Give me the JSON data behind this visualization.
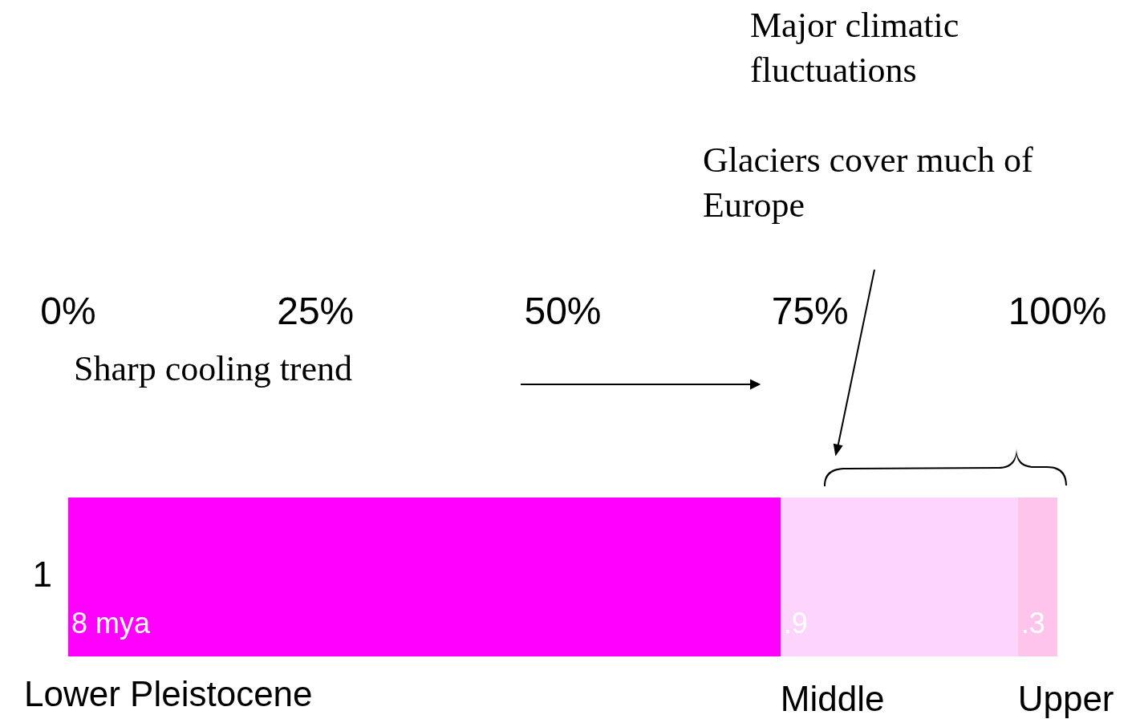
{
  "chart_data": {
    "type": "bar",
    "orientation": "horizontal",
    "stacked": true,
    "categories": [
      "1"
    ],
    "series": [
      {
        "name": "Lower Pleistocene",
        "color": "#ff00ff",
        "values": [
          72
        ]
      },
      {
        "name": "Middle",
        "color": "#fcd4fc",
        "values": [
          24
        ]
      },
      {
        "name": "Upper",
        "color": "#ffc4ec",
        "values": [
          4
        ]
      }
    ],
    "xlim": [
      0,
      100
    ],
    "xticks": [
      {
        "value": 0,
        "label": "0%"
      },
      {
        "value": 25,
        "label": "25%"
      },
      {
        "value": 50,
        "label": "50%"
      },
      {
        "value": 75,
        "label": "75%"
      },
      {
        "value": 100,
        "label": "100%"
      }
    ],
    "grid": false,
    "legend": false,
    "annotations": [
      "Major climatic fluctuations",
      "Glaciers cover much of Europe",
      "Sharp cooling trend",
      {
        "text": "8 mya",
        "x": 0,
        "y": "1"
      },
      {
        "text": ".9",
        "x": 72,
        "y": "1"
      },
      {
        "text": ".3",
        "x": 96,
        "y": "1"
      }
    ]
  }
}
